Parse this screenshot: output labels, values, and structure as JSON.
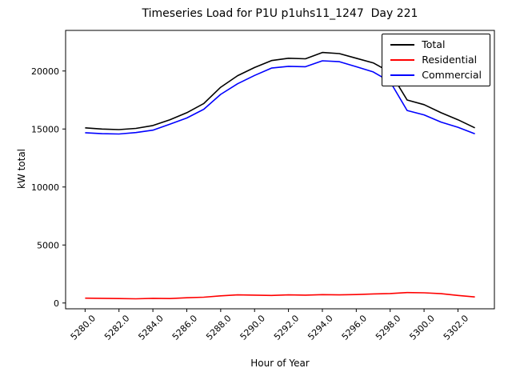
{
  "chart_data": {
    "type": "line",
    "title": "Timeseries Load for P1U p1uhs11_1247  Day 221",
    "xlabel": "Hour of Year",
    "ylabel": "kW total",
    "grid": false,
    "legend_position": "upper right",
    "xlim": [
      5278.85,
      5304.15
    ],
    "ylim": [
      -500,
      23500
    ],
    "xticks": [
      5280,
      5282,
      5284,
      5286,
      5288,
      5290,
      5292,
      5294,
      5296,
      5298,
      5300,
      5302
    ],
    "xtick_labels": [
      "5280.0",
      "5282.0",
      "5284.0",
      "5286.0",
      "5288.0",
      "5290.0",
      "5292.0",
      "5294.0",
      "5296.0",
      "5298.0",
      "5300.0",
      "5302.0"
    ],
    "yticks": [
      0,
      5000,
      10000,
      15000,
      20000
    ],
    "ytick_labels": [
      "0",
      "5000",
      "10000",
      "15000",
      "20000"
    ],
    "x": [
      5280,
      5281,
      5282,
      5283,
      5284,
      5285,
      5286,
      5287,
      5288,
      5289,
      5290,
      5291,
      5292,
      5293,
      5294,
      5295,
      5296,
      5297,
      5298,
      5299,
      5300,
      5301,
      5302,
      5303
    ],
    "series": [
      {
        "name": "Total",
        "color": "#000000",
        "values": [
          15100,
          15000,
          14950,
          15050,
          15300,
          15800,
          16400,
          17200,
          18600,
          19600,
          20300,
          20900,
          21100,
          21050,
          21600,
          21500,
          21100,
          20700,
          19900,
          17500,
          17100,
          16400,
          15800,
          15100
        ]
      },
      {
        "name": "Residential",
        "color": "#ff0000",
        "values": [
          420,
          400,
          380,
          360,
          400,
          380,
          450,
          500,
          620,
          700,
          680,
          650,
          700,
          680,
          720,
          700,
          730,
          780,
          820,
          900,
          880,
          800,
          650,
          520
        ]
      },
      {
        "name": "Commercial",
        "color": "#0000ff",
        "values": [
          14680,
          14600,
          14570,
          14690,
          14900,
          15420,
          15950,
          16700,
          17980,
          18900,
          19620,
          20250,
          20400,
          20370,
          20880,
          20800,
          20370,
          19920,
          19080,
          16600,
          16220,
          15600,
          15150,
          14580
        ]
      }
    ]
  }
}
